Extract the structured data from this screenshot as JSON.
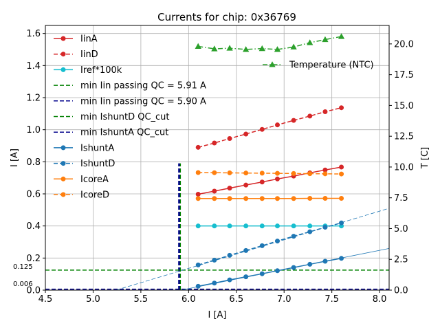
{
  "chart_data": {
    "type": "line",
    "title": "Currents for chip: 0x36769",
    "xlabel": "I [A]",
    "ylabel": "I [A]",
    "y2label": "T [C]",
    "xlim": [
      4.5,
      8.1
    ],
    "ylim": [
      0.0,
      1.65
    ],
    "y2lim": [
      0.0,
      21.5
    ],
    "grid": true,
    "x_ticks": [
      4.5,
      5.0,
      5.5,
      6.0,
      6.5,
      7.0,
      7.5,
      8.0
    ],
    "x_tick_labels": [
      "4.5",
      "5.0",
      "5.5",
      "6.0",
      "6.5",
      "7.0",
      "7.5",
      "8.0"
    ],
    "y_ticks": [
      0.0,
      0.2,
      0.4,
      0.6,
      0.8,
      1.0,
      1.2,
      1.4,
      1.6
    ],
    "y_tick_labels": [
      "0.0",
      "0.2",
      "0.4",
      "0.6",
      "0.8",
      "1.0",
      "1.2",
      "1.4",
      "1.6"
    ],
    "y2_ticks": [
      0.0,
      2.5,
      5.0,
      7.5,
      10.0,
      12.5,
      15.0,
      17.5,
      20.0
    ],
    "y2_tick_labels": [
      "0.0",
      "2.5",
      "5.0",
      "7.5",
      "10.0",
      "12.5",
      "15.0",
      "17.5",
      "20.0"
    ],
    "x": [
      6.1,
      6.27,
      6.43,
      6.6,
      6.77,
      6.93,
      7.1,
      7.27,
      7.43,
      7.6
    ],
    "series": [
      {
        "name": "IinA",
        "color": "#d62728",
        "style": "solid",
        "marker": "circle",
        "values": [
          0.598,
          0.617,
          0.636,
          0.655,
          0.674,
          0.693,
          0.711,
          0.731,
          0.749,
          0.767
        ]
      },
      {
        "name": "IinD",
        "color": "#d62728",
        "style": "dashed",
        "marker": "circle",
        "values": [
          0.89,
          0.917,
          0.945,
          0.973,
          1.002,
          1.03,
          1.058,
          1.085,
          1.112,
          1.137
        ]
      },
      {
        "name": "Iref*100k",
        "color": "#17becf",
        "style": "solid",
        "marker": "circle",
        "values": [
          0.4,
          0.4,
          0.4,
          0.4,
          0.4,
          0.4,
          0.4,
          0.4,
          0.4,
          0.4
        ]
      },
      {
        "name": "IshuntA",
        "color": "#1f77b4",
        "style": "solid",
        "marker": "circle",
        "values": [
          0.024,
          0.044,
          0.064,
          0.083,
          0.102,
          0.121,
          0.141,
          0.161,
          0.18,
          0.198
        ]
      },
      {
        "name": "IshuntD",
        "color": "#1f77b4",
        "style": "dashed",
        "marker": "circle",
        "values": [
          0.157,
          0.187,
          0.217,
          0.247,
          0.277,
          0.306,
          0.336,
          0.364,
          0.392,
          0.419
        ]
      },
      {
        "name": "IcoreA",
        "color": "#ff7f0e",
        "style": "solid",
        "marker": "circle",
        "values": [
          0.571,
          0.571,
          0.571,
          0.571,
          0.571,
          0.571,
          0.571,
          0.572,
          0.572,
          0.572
        ]
      },
      {
        "name": "IcoreD",
        "color": "#ff7f0e",
        "style": "dashed",
        "marker": "circle",
        "values": [
          0.733,
          0.732,
          0.731,
          0.73,
          0.729,
          0.728,
          0.727,
          0.726,
          0.725,
          0.724
        ]
      }
    ],
    "temperature_series": {
      "name": "Temperature (NTC)",
      "axis": "right",
      "color": "#2ca02c",
      "style": "dashdot",
      "marker": "triangle",
      "values": [
        19.8,
        19.6,
        19.65,
        19.55,
        19.62,
        19.55,
        19.75,
        20.1,
        20.35,
        20.6
      ]
    },
    "reference_lines": [
      {
        "name": "min Iin passing QC = 5.91 A",
        "orientation": "vertical",
        "x": 5.91,
        "y_range": [
          0.0,
          0.79
        ],
        "color": "#008000",
        "style": "dashed"
      },
      {
        "name": "min Iin passing QC = 5.90 A",
        "orientation": "vertical",
        "x": 5.9,
        "y_range": [
          0.0,
          0.79
        ],
        "color": "#00008b",
        "style": "dashed"
      },
      {
        "name": "min IshuntD QC_cut",
        "orientation": "horizontal",
        "y": 0.125,
        "color": "#008000",
        "style": "dashed"
      },
      {
        "name": "min IshuntA QC_cut",
        "orientation": "horizontal",
        "y": 0.006,
        "color": "#00008b",
        "style": "dashed"
      }
    ],
    "fit_lines": [
      {
        "series": "IshuntA",
        "style": "solid",
        "color": "#1f77b4",
        "x0": 5.92,
        "y0": 0.0,
        "x1": 8.1,
        "y1": 0.26
      },
      {
        "series": "IshuntD",
        "style": "dashed",
        "color": "#1f77b4",
        "x0": 5.24,
        "y0": 0.0,
        "x1": 8.1,
        "y1": 0.51
      }
    ],
    "annotations": [
      {
        "text": "0.125",
        "y": 0.125
      },
      {
        "text": "0.006",
        "y": 0.006
      }
    ],
    "legend_main": [
      {
        "label": "IinA",
        "color": "#d62728",
        "style": "solid",
        "marker": "circle"
      },
      {
        "label": "IinD",
        "color": "#d62728",
        "style": "dashed",
        "marker": "circle"
      },
      {
        "label": "Iref*100k",
        "color": "#17becf",
        "style": "solid",
        "marker": "circle"
      },
      {
        "label": "min Iin passing QC = 5.91 A",
        "color": "#008000",
        "style": "dashed",
        "marker": "none"
      },
      {
        "label": "min Iin passing QC = 5.90 A",
        "color": "#00008b",
        "style": "dashed",
        "marker": "none"
      },
      {
        "label": "min IshuntD QC_cut",
        "color": "#008000",
        "style": "dashed",
        "marker": "none"
      },
      {
        "label": "min IshuntA QC_cut",
        "color": "#00008b",
        "style": "dashed",
        "marker": "none"
      },
      {
        "label": "IshuntA",
        "color": "#1f77b4",
        "style": "solid",
        "marker": "circle"
      },
      {
        "label": "IshuntD",
        "color": "#1f77b4",
        "style": "dashed",
        "marker": "circle"
      },
      {
        "label": "IcoreA",
        "color": "#ff7f0e",
        "style": "solid",
        "marker": "circle"
      },
      {
        "label": "IcoreD",
        "color": "#ff7f0e",
        "style": "dashed",
        "marker": "circle"
      }
    ],
    "legend_temperature": {
      "label": "Temperature (NTC)",
      "color": "#2ca02c",
      "style": "dashdot",
      "marker": "triangle"
    },
    "legend_placement": "upper-left"
  }
}
